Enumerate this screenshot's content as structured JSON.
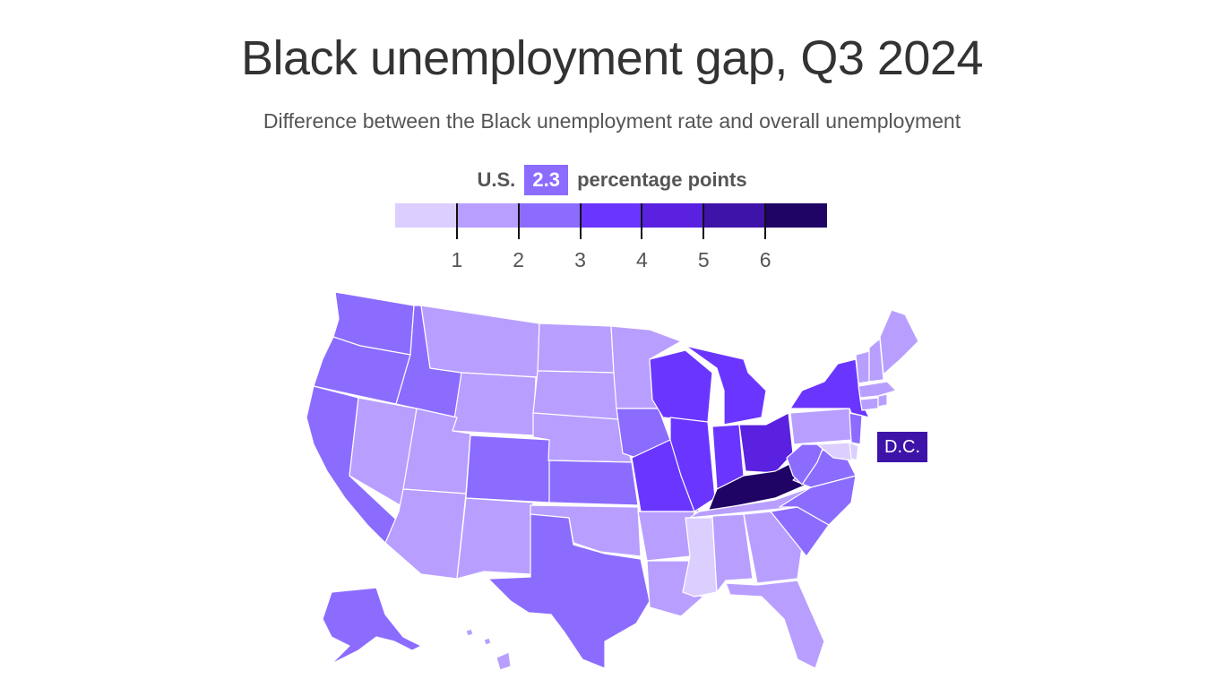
{
  "title": "Black unemployment gap, Q3 2024",
  "subtitle": "Difference between the Black unemployment rate and overall unemployment",
  "legend": {
    "prefix": "U.S.",
    "us_value": "2.3",
    "suffix": "percentage points",
    "ticks": [
      "1",
      "2",
      "3",
      "4",
      "5",
      "6"
    ],
    "bin_colors": [
      "#dccfff",
      "#b89fff",
      "#8c6cfe",
      "#6a36ff",
      "#5a21e0",
      "#3e13a8",
      "#1f0466"
    ]
  },
  "dc_label": "D.C.",
  "colors": {
    "bin0": "#dccfff",
    "bin1": "#b89fff",
    "bin2": "#8c6cfe",
    "bin3": "#6a36ff",
    "bin4": "#5a21e0",
    "bin5": "#3e13a8",
    "bin6": "#1f0466",
    "badge": "#8c6cfe",
    "dc": "#3e13a8"
  },
  "states": {
    "WA": "bin2",
    "OR": "bin2",
    "CA": "bin2",
    "ID": "bin2",
    "NV": "bin1",
    "MT": "bin1",
    "WY": "bin1",
    "UT": "bin1",
    "AZ": "bin1",
    "CO": "bin2",
    "NM": "bin1",
    "ND": "bin1",
    "SD": "bin1",
    "NE": "bin1",
    "KS": "bin2",
    "OK": "bin1",
    "TX": "bin2",
    "MN": "bin1",
    "IA": "bin2",
    "MO": "bin3",
    "AR": "bin1",
    "LA": "bin1",
    "WI": "bin3",
    "IL": "bin3",
    "MI": "bin3",
    "IN": "bin3",
    "OH": "bin4",
    "KY": "bin6",
    "TN": "bin1",
    "MS": "bin0",
    "AL": "bin1",
    "GA": "bin1",
    "FL": "bin1",
    "SC": "bin2",
    "NC": "bin2",
    "VA": "bin2",
    "WV": "bin2",
    "PA": "bin1",
    "NY": "bin3",
    "ME": "bin1",
    "NH": "bin1",
    "VT": "bin1",
    "MA": "bin1",
    "CT": "bin1",
    "RI": "bin1",
    "NJ": "bin2",
    "DE": "bin0",
    "MD": "bin0",
    "AK": "bin2",
    "HI": "bin1"
  }
}
